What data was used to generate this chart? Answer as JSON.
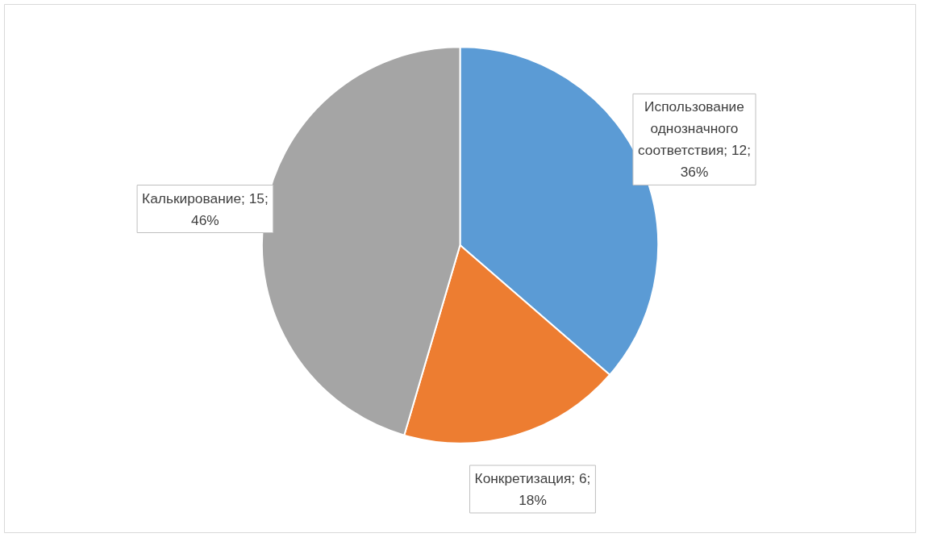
{
  "chart_data": {
    "type": "pie",
    "categories": [
      "Использование однозначного соответствия",
      "Конкретизация",
      "Калькирование"
    ],
    "values": [
      12,
      6,
      15
    ],
    "value_labels": [
      "12; 36%",
      "6; 18%",
      "15; 46%"
    ],
    "colors": [
      "#5b9bd5",
      "#ed7d31",
      "#a5a5a5"
    ],
    "data_labels": true,
    "legend": false
  }
}
